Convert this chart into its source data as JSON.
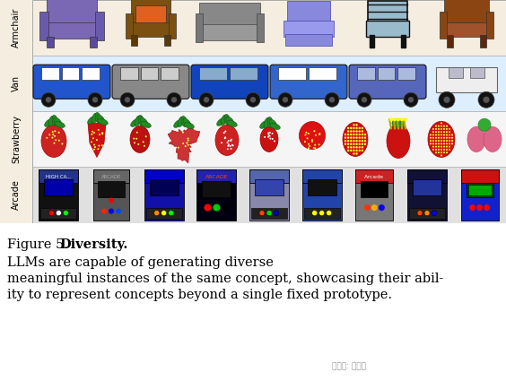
{
  "row_labels": [
    "Armchair",
    "Van",
    "Strawberry",
    "Arcade"
  ],
  "caption_text1": "Figure 5.",
  "caption_text2": "  Diversity.",
  "caption_text3": "  LLMs are capable of generating diverse meaningful instances of the same concept, showcasing their abil-ity to represent concepts beyond a single fixed prototype.",
  "caption_fontsize": 10.5,
  "row_bg": [
    "#f5ede0",
    "#ddeeff",
    "#f5f5f5",
    "#e0e0e0"
  ],
  "overall_bg": "#f5ede0",
  "fig_w": 5.64,
  "fig_h": 4.25,
  "dpi": 100
}
